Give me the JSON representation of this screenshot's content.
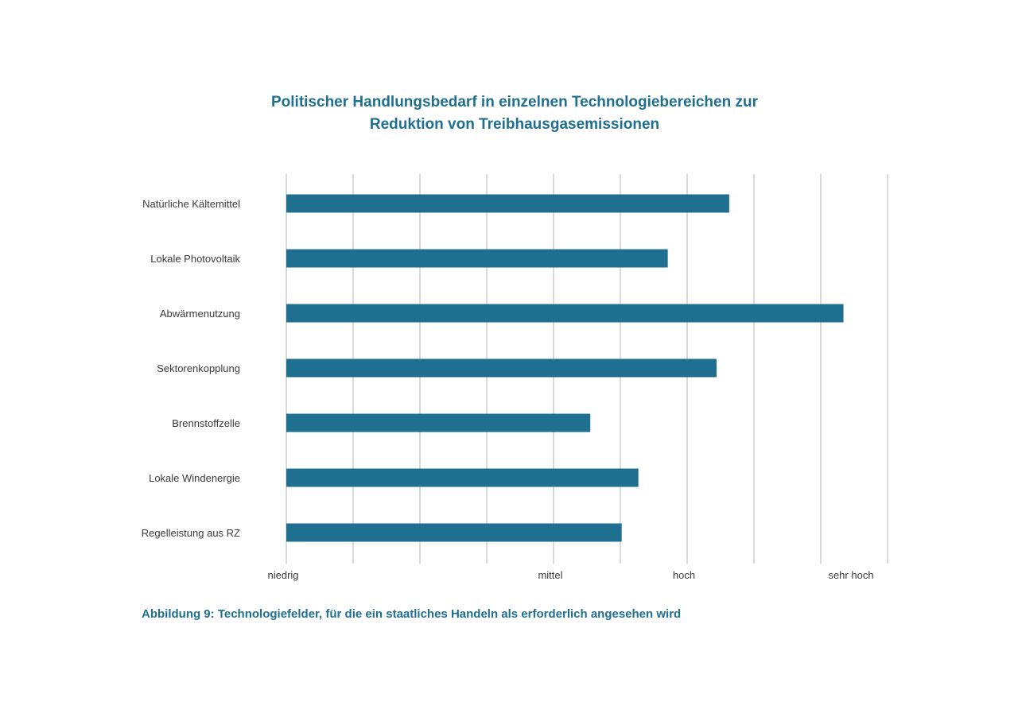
{
  "chart_data": {
    "type": "bar",
    "orientation": "horizontal",
    "title_lines": [
      "Politischer Handlungsbedarf in einzelnen Technologiebereichen zur",
      "Reduktion von Treibhausgasemissionen"
    ],
    "categories": [
      "Natürliche Kältemittel",
      "Lokale Photovoltaik",
      "Abwärmenutzung",
      "Sektorenkopplung",
      "Brennstoffzelle",
      "Lokale Windenergie",
      "Regelleistung aus RZ"
    ],
    "values": [
      6.63,
      5.71,
      8.34,
      6.44,
      4.55,
      5.27,
      5.02
    ],
    "xlim": [
      0,
      9
    ],
    "grid_ticks": [
      0,
      1,
      2,
      3,
      4,
      5,
      6,
      7,
      8,
      9
    ],
    "tick_labels": [
      {
        "value": 0,
        "label": "niedrig"
      },
      {
        "value": 4,
        "label": "mittel"
      },
      {
        "value": 6,
        "label": "hoch"
      },
      {
        "value": 8.5,
        "label": "sehr hoch"
      }
    ],
    "bar_color": "#1f6f91",
    "grid": true
  },
  "caption": "Abbildung 9: Technologiefelder, für die ein staatliches Handeln als erforderlich angesehen wird"
}
